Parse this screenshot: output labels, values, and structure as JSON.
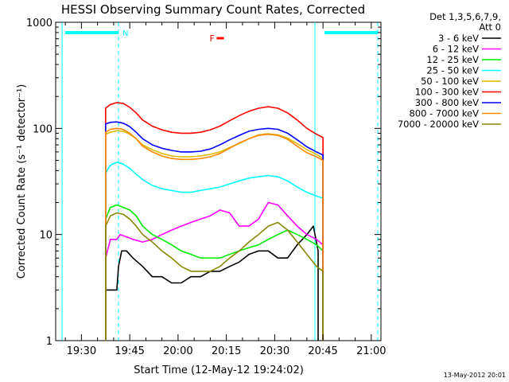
{
  "chart_data": {
    "type": "line",
    "title": "HESSI Observing Summary Count Rates, Corrected",
    "xlabel": "Start Time (12-May-12 19:24:02)",
    "ylabel": "Corrected Count Rate (s⁻¹ detector⁻¹)",
    "yscale": "log",
    "ylim": [
      1,
      1000
    ],
    "xlim_minutes": [
      -2,
      99
    ],
    "x_ticks": [
      {
        "label": "19:30",
        "minutes": 6
      },
      {
        "label": "19:45",
        "minutes": 21
      },
      {
        "label": "20:00",
        "minutes": 36
      },
      {
        "label": "20:15",
        "minutes": 51
      },
      {
        "label": "20:30",
        "minutes": 66
      },
      {
        "label": "20:45",
        "minutes": 81
      },
      {
        "label": "21:00",
        "minutes": 96
      }
    ],
    "y_ticks": [
      {
        "label": "1",
        "value": 1
      },
      {
        "label": "10",
        "value": 10
      },
      {
        "label": "100",
        "value": 100
      },
      {
        "label": "1000",
        "value": 1000
      }
    ],
    "grid": false,
    "legend_position": "right",
    "legend_header": [
      "Det 1,3,5,6,7,9,",
      "Att 0"
    ],
    "annotations": {
      "night_label": "N",
      "flare_label": "F",
      "night_intervals_minutes": [
        [
          -2,
          17.5
        ],
        [
          78.5,
          98
        ]
      ],
      "boundary_lines_minutes": [
        {
          "minutes": 0,
          "style": "solid"
        },
        {
          "minutes": 17.5,
          "style": "dashed"
        },
        {
          "minutes": 78.5,
          "style": "solid"
        },
        {
          "minutes": 98,
          "style": "dashed"
        }
      ],
      "flare_interval_minutes": [
        48,
        49.5
      ]
    },
    "series": [
      {
        "name": "3 - 6 keV",
        "color": "#000000",
        "x": [
          13.5,
          15,
          17,
          17.5,
          18.5,
          20,
          22,
          25,
          28,
          31,
          34,
          37,
          40,
          43,
          46,
          49,
          52,
          55,
          58,
          61,
          64,
          67,
          70,
          73,
          76,
          78,
          79.5
        ],
        "y": [
          3,
          3,
          3,
          5,
          7,
          7,
          6,
          5,
          4,
          4,
          3.5,
          3.5,
          4,
          4,
          4.5,
          4.5,
          5,
          5.5,
          6.5,
          7,
          7,
          6,
          6,
          8,
          10,
          12,
          7
        ]
      },
      {
        "name": "6 - 12 keV",
        "color": "#ff00ff",
        "x": [
          13.5,
          15,
          17,
          18,
          20,
          22,
          25,
          28,
          31,
          34,
          37,
          40,
          43,
          46,
          49,
          52,
          55,
          58,
          61,
          64,
          67,
          70,
          73,
          76,
          79,
          81
        ],
        "y": [
          6,
          9,
          9,
          10,
          9.5,
          9,
          8.5,
          9,
          10,
          11,
          12,
          13,
          14,
          15,
          17,
          16,
          12,
          12,
          14,
          20,
          19,
          15,
          12,
          10,
          9,
          8
        ]
      },
      {
        "name": "12 - 25 keV",
        "color": "#00ee00",
        "x": [
          13.5,
          15,
          17,
          19,
          21,
          23,
          25,
          28,
          31,
          34,
          37,
          40,
          43,
          46,
          49,
          52,
          55,
          58,
          61,
          64,
          67,
          70,
          73,
          76,
          79,
          81
        ],
        "y": [
          14,
          18,
          19,
          18,
          17,
          15,
          12,
          10,
          9,
          8,
          7,
          6.5,
          6,
          6,
          6,
          6.5,
          7,
          7.5,
          8,
          9,
          10,
          11,
          10,
          9,
          8,
          7
        ]
      },
      {
        "name": "25 - 50 keV",
        "color": "#00ffff",
        "x": [
          13.5,
          15,
          17,
          19,
          21,
          23,
          25,
          28,
          31,
          34,
          37,
          40,
          43,
          46,
          49,
          52,
          55,
          58,
          61,
          64,
          67,
          70,
          73,
          76,
          79,
          81
        ],
        "y": [
          38,
          45,
          48,
          46,
          42,
          37,
          33,
          29,
          27,
          26,
          25,
          25,
          26,
          27,
          28,
          30,
          32,
          34,
          35,
          36,
          35,
          32,
          28,
          25,
          23,
          22
        ]
      },
      {
        "name": "50 - 100 keV",
        "color": "#ddbb00",
        "x": [
          13.5,
          15,
          17,
          19,
          21,
          23,
          25,
          28,
          31,
          34,
          37,
          40,
          43,
          46,
          49,
          52,
          55,
          58,
          61,
          64,
          67,
          70,
          73,
          76,
          79,
          81
        ],
        "y": [
          88,
          92,
          95,
          94,
          88,
          80,
          70,
          63,
          58,
          55,
          54,
          54,
          55,
          57,
          60,
          66,
          72,
          80,
          87,
          89,
          87,
          81,
          72,
          63,
          57,
          52
        ]
      },
      {
        "name": "100 - 300 keV",
        "color": "#ff0000",
        "x": [
          13.5,
          15,
          17,
          19,
          21,
          23,
          25,
          28,
          31,
          34,
          37,
          40,
          43,
          46,
          49,
          52,
          55,
          58,
          61,
          64,
          67,
          70,
          73,
          76,
          79,
          81
        ],
        "y": [
          155,
          168,
          175,
          172,
          158,
          140,
          120,
          105,
          97,
          92,
          90,
          90,
          92,
          97,
          105,
          118,
          132,
          145,
          155,
          160,
          155,
          140,
          120,
          100,
          88,
          82
        ]
      },
      {
        "name": "300 - 800 keV",
        "color": "#0000ff",
        "x": [
          13.5,
          15,
          17,
          19,
          21,
          23,
          25,
          28,
          31,
          34,
          37,
          40,
          43,
          46,
          49,
          52,
          55,
          58,
          61,
          64,
          67,
          70,
          73,
          76,
          79,
          81
        ],
        "y": [
          110,
          114,
          115,
          112,
          104,
          92,
          80,
          70,
          65,
          62,
          60,
          60,
          61,
          64,
          70,
          78,
          86,
          94,
          98,
          100,
          98,
          90,
          78,
          67,
          60,
          56
        ]
      },
      {
        "name": "800 - 7000 keV",
        "color": "#ff8800",
        "x": [
          13.5,
          15,
          17,
          19,
          21,
          23,
          25,
          28,
          31,
          34,
          37,
          40,
          43,
          46,
          49,
          52,
          55,
          58,
          61,
          64,
          67,
          70,
          73,
          76,
          79,
          81
        ],
        "y": [
          92,
          98,
          100,
          98,
          90,
          80,
          68,
          60,
          55,
          52,
          51,
          51,
          52,
          54,
          58,
          65,
          73,
          80,
          86,
          88,
          86,
          79,
          68,
          59,
          54,
          50
        ]
      },
      {
        "name": "7000 - 20000 keV",
        "color": "#888800",
        "x": [
          13.5,
          15,
          17,
          19,
          21,
          23,
          25,
          28,
          31,
          34,
          37,
          40,
          43,
          46,
          49,
          52,
          55,
          58,
          61,
          64,
          67,
          70,
          73,
          76,
          79,
          81
        ],
        "y": [
          12,
          15,
          16,
          15.5,
          14,
          12,
          10,
          8.5,
          7,
          6,
          5,
          4.5,
          4.5,
          4.5,
          5,
          6,
          7,
          8.5,
          10,
          12,
          13,
          11,
          8.5,
          6.5,
          5,
          4.5
        ]
      }
    ]
  },
  "footer_date": "13-May-2012 20:01"
}
